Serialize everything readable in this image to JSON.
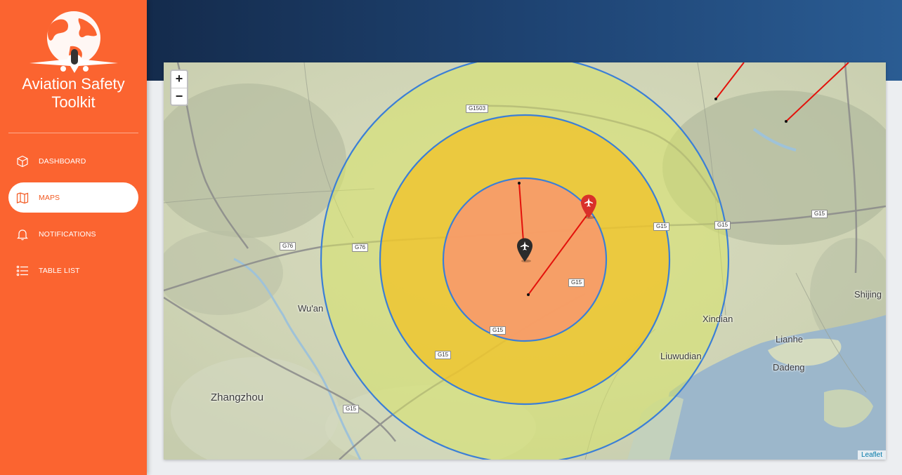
{
  "app": {
    "title_line1": "Aviation Safety",
    "title_line2": "Toolkit"
  },
  "sidebar": {
    "items": [
      {
        "label": "DASHBOARD",
        "icon": "cube-icon",
        "active": false
      },
      {
        "label": "MAPS",
        "icon": "map-icon",
        "active": true
      },
      {
        "label": "NOTIFICATIONS",
        "icon": "bell-icon",
        "active": false
      },
      {
        "label": "TABLE LIST",
        "icon": "list-icon",
        "active": false
      }
    ]
  },
  "map": {
    "zoom_in": "+",
    "zoom_out": "−",
    "attribution": "Leaflet",
    "cities": [
      "Wu'an",
      "Zhangzhou",
      "Xindian",
      "Liuwudian",
      "Lianhe",
      "Dadeng",
      "Shijing"
    ],
    "roads": [
      "G1503",
      "G76",
      "G76",
      "G15",
      "G15",
      "G15",
      "G15",
      "G15",
      "G15",
      "G15"
    ]
  },
  "colors": {
    "sidebar": "#fb6430",
    "header": "#1f4575",
    "zone_inner": "#f79a6c",
    "zone_middle": "#f3c021",
    "zone_outer": "#d7e466",
    "zone_ring": "#3b7fd6",
    "flight_path": "#e3120b",
    "marker_primary": "#2b2b2b",
    "marker_alert": "#d9302a"
  }
}
